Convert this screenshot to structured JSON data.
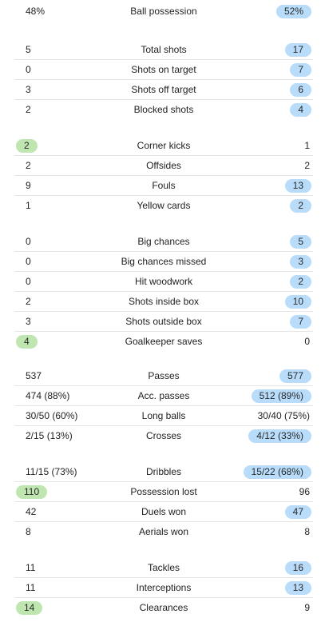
{
  "colors": {
    "home_highlight": "#bfe6b0",
    "away_highlight": "#b8dcfa",
    "divider": "#e5e5e5"
  },
  "groups": [
    {
      "rows": [
        {
          "label": "Ball possession",
          "home": "48%",
          "away": "52%",
          "hl": "away"
        }
      ]
    },
    {
      "rows": [
        {
          "label": "Total shots",
          "home": "5",
          "away": "17",
          "hl": "away"
        },
        {
          "label": "Shots on target",
          "home": "0",
          "away": "7",
          "hl": "away"
        },
        {
          "label": "Shots off target",
          "home": "3",
          "away": "6",
          "hl": "away"
        },
        {
          "label": "Blocked shots",
          "home": "2",
          "away": "4",
          "hl": "away"
        }
      ]
    },
    {
      "rows": [
        {
          "label": "Corner kicks",
          "home": "2",
          "away": "1",
          "hl": "home"
        },
        {
          "label": "Offsides",
          "home": "2",
          "away": "2",
          "hl": "none"
        },
        {
          "label": "Fouls",
          "home": "9",
          "away": "13",
          "hl": "away"
        },
        {
          "label": "Yellow cards",
          "home": "1",
          "away": "2",
          "hl": "away"
        }
      ]
    },
    {
      "rows": [
        {
          "label": "Big chances",
          "home": "0",
          "away": "5",
          "hl": "away"
        },
        {
          "label": "Big chances missed",
          "home": "0",
          "away": "3",
          "hl": "away"
        },
        {
          "label": "Hit woodwork",
          "home": "0",
          "away": "2",
          "hl": "away"
        },
        {
          "label": "Shots inside box",
          "home": "2",
          "away": "10",
          "hl": "away"
        },
        {
          "label": "Shots outside box",
          "home": "3",
          "away": "7",
          "hl": "away"
        },
        {
          "label": "Goalkeeper saves",
          "home": "4",
          "away": "0",
          "hl": "home"
        }
      ]
    },
    {
      "rows": [
        {
          "label": "Passes",
          "home": "537",
          "away": "577",
          "hl": "away"
        },
        {
          "label": "Acc. passes",
          "home": "474 (88%)",
          "away": "512 (89%)",
          "hl": "away"
        },
        {
          "label": "Long balls",
          "home": "30/50 (60%)",
          "away": "30/40 (75%)",
          "hl": "none"
        },
        {
          "label": "Crosses",
          "home": "2/15 (13%)",
          "away": "4/12 (33%)",
          "hl": "away"
        }
      ]
    },
    {
      "rows": [
        {
          "label": "Dribbles",
          "home": "11/15 (73%)",
          "away": "15/22 (68%)",
          "hl": "away"
        },
        {
          "label": "Possession lost",
          "home": "110",
          "away": "96",
          "hl": "home"
        },
        {
          "label": "Duels won",
          "home": "42",
          "away": "47",
          "hl": "away"
        },
        {
          "label": "Aerials won",
          "home": "8",
          "away": "8",
          "hl": "none"
        }
      ]
    },
    {
      "rows": [
        {
          "label": "Tackles",
          "home": "11",
          "away": "16",
          "hl": "away"
        },
        {
          "label": "Interceptions",
          "home": "11",
          "away": "13",
          "hl": "away"
        },
        {
          "label": "Clearances",
          "home": "14",
          "away": "9",
          "hl": "home"
        }
      ]
    }
  ]
}
